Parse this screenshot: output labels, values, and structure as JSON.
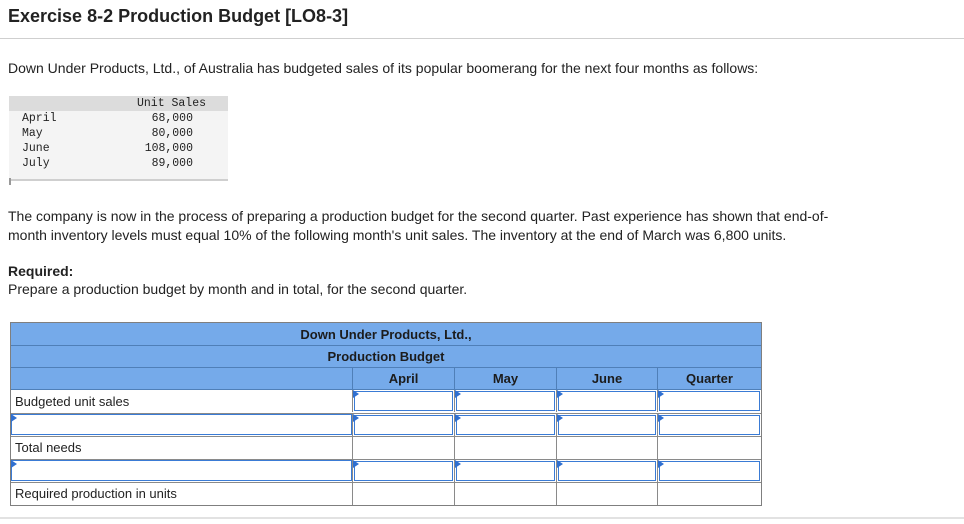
{
  "title": "Exercise 8-2 Production Budget [LO8-3]",
  "intro": "Down Under Products, Ltd., of Australia has budgeted sales of its popular boomerang for the next four months as follows:",
  "sales_table": {
    "header": "Unit Sales",
    "rows": [
      {
        "month": "April",
        "units": "68,000"
      },
      {
        "month": "May",
        "units": "80,000"
      },
      {
        "month": "June",
        "units": "108,000"
      },
      {
        "month": "July",
        "units": "89,000"
      }
    ]
  },
  "paragraph2_line1": "The company is now in the process of preparing a production budget for the second quarter. Past experience has shown that end-of-",
  "paragraph2_line2": "month inventory levels must equal 10% of the following month's unit sales. The inventory at the end of March was 6,800 units.",
  "required_label": "Required:",
  "required_text": "Prepare a production budget by month and in total, for the second quarter.",
  "budget": {
    "company": "Down Under Products, Ltd.,",
    "name": "Production Budget",
    "columns": [
      "April",
      "May",
      "June",
      "Quarter"
    ],
    "rows": [
      {
        "label": "Budgeted unit sales",
        "editable_label": false
      },
      {
        "label": "",
        "editable_label": true
      },
      {
        "label": "Total needs",
        "editable_label": false
      },
      {
        "label": "",
        "editable_label": true
      },
      {
        "label": "Required production in units",
        "editable_label": false
      }
    ]
  }
}
